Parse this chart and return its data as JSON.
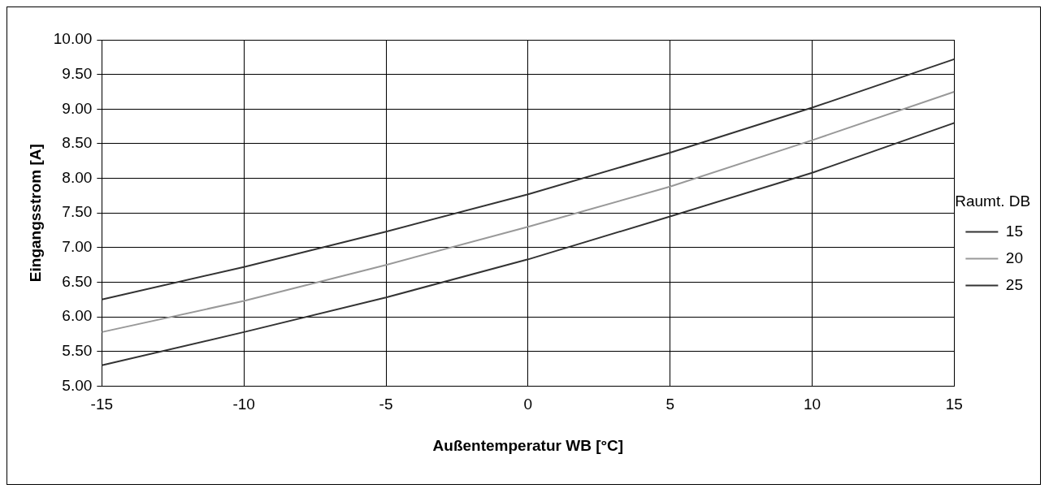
{
  "chart_data": {
    "type": "line",
    "xlabel": "Außentemperatur WB [°C]",
    "ylabel": "Eingangsstrom [A]",
    "legend_title": "Raumt. DB",
    "x": [
      -15,
      -10,
      -5,
      0,
      5,
      10,
      15
    ],
    "series": [
      {
        "name": "15",
        "color": "#333333",
        "values": [
          5.3,
          5.78,
          6.28,
          6.83,
          7.45,
          8.08,
          8.8
        ]
      },
      {
        "name": "20",
        "color": "#999999",
        "values": [
          5.78,
          6.23,
          6.75,
          7.3,
          7.88,
          8.55,
          9.25
        ]
      },
      {
        "name": "25",
        "color": "#333333",
        "values": [
          6.25,
          6.72,
          7.23,
          7.77,
          8.37,
          9.02,
          9.72
        ]
      }
    ],
    "xlim": [
      -15,
      15
    ],
    "xticks": [
      -15,
      -10,
      -5,
      0,
      5,
      10,
      15
    ],
    "ylim": [
      5,
      10
    ],
    "yticks": [
      {
        "value": 5,
        "label": "5.00"
      },
      {
        "value": 5.5,
        "label": "5.50"
      },
      {
        "value": 6,
        "label": "6.00"
      },
      {
        "value": 6.5,
        "label": "6.50"
      },
      {
        "value": 7,
        "label": "7.00"
      },
      {
        "value": 7.5,
        "label": "7.50"
      },
      {
        "value": 8,
        "label": "8.00"
      },
      {
        "value": 8.5,
        "label": "8.50"
      },
      {
        "value": 9,
        "label": "9.00"
      },
      {
        "value": 9.5,
        "label": "9.50"
      },
      {
        "value": 10,
        "label": "10.00"
      }
    ],
    "grid": true,
    "legend": "right",
    "marker": "none",
    "line_style": "solid"
  }
}
